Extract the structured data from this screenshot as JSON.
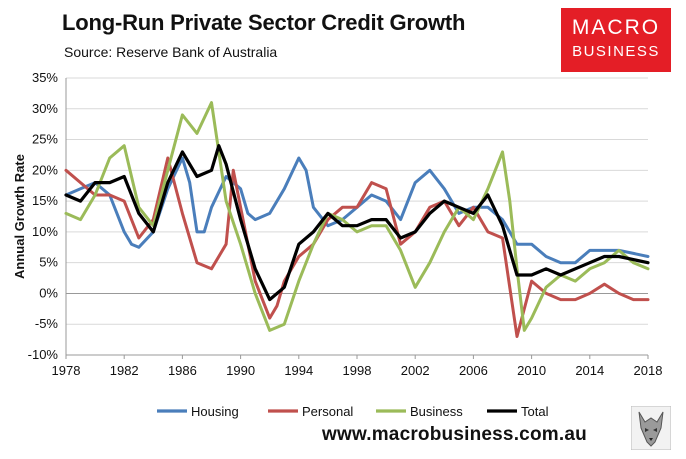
{
  "header": {
    "title": "Long-Run Private Sector Credit Growth",
    "subtitle": "Source: Reserve Bank of Australia"
  },
  "logo": {
    "line1": "MACRO",
    "line2": "BUSINESS",
    "color": "#e41e26"
  },
  "footer": {
    "url": "www.macrobusiness.com.au"
  },
  "chart_data": {
    "type": "line",
    "ylabel": "Annual Growth Rate",
    "ylim": [
      -10,
      35
    ],
    "xlim": [
      1978,
      2018
    ],
    "yticks": [
      "-10%",
      "-5%",
      "0%",
      "5%",
      "10%",
      "15%",
      "20%",
      "25%",
      "30%",
      "35%"
    ],
    "xticks": [
      "1978",
      "1982",
      "1986",
      "1990",
      "1994",
      "1998",
      "2002",
      "2006",
      "2010",
      "2014",
      "2018"
    ],
    "grid": "horizontal",
    "legend_position": "bottom",
    "series": [
      {
        "name": "Housing",
        "color": "#4a7ebb",
        "points": [
          [
            1978,
            16
          ],
          [
            1979,
            17
          ],
          [
            1980,
            18
          ],
          [
            1981,
            16
          ],
          [
            1982,
            10
          ],
          [
            1982.5,
            8
          ],
          [
            1983,
            7.5
          ],
          [
            1984,
            10
          ],
          [
            1985,
            17
          ],
          [
            1986,
            22
          ],
          [
            1986.5,
            18
          ],
          [
            1987,
            10
          ],
          [
            1987.5,
            10
          ],
          [
            1988,
            14
          ],
          [
            1989,
            19
          ],
          [
            1990,
            17
          ],
          [
            1990.5,
            13
          ],
          [
            1991,
            12
          ],
          [
            1992,
            13
          ],
          [
            1993,
            17
          ],
          [
            1994,
            22
          ],
          [
            1994.5,
            20
          ],
          [
            1995,
            14
          ],
          [
            1996,
            11
          ],
          [
            1997,
            12
          ],
          [
            1998,
            14
          ],
          [
            1999,
            16
          ],
          [
            2000,
            15
          ],
          [
            2001,
            12
          ],
          [
            2002,
            18
          ],
          [
            2003,
            20
          ],
          [
            2004,
            17
          ],
          [
            2005,
            13
          ],
          [
            2006,
            14
          ],
          [
            2007,
            14
          ],
          [
            2008,
            12
          ],
          [
            2009,
            8
          ],
          [
            2010,
            8
          ],
          [
            2011,
            6
          ],
          [
            2012,
            5
          ],
          [
            2013,
            5
          ],
          [
            2014,
            7
          ],
          [
            2015,
            7
          ],
          [
            2016,
            7
          ],
          [
            2017,
            6.5
          ],
          [
            2018,
            6
          ]
        ]
      },
      {
        "name": "Personal",
        "color": "#c0504d",
        "points": [
          [
            1978,
            20
          ],
          [
            1979,
            18
          ],
          [
            1980,
            16
          ],
          [
            1981,
            16
          ],
          [
            1982,
            15
          ],
          [
            1983,
            9
          ],
          [
            1984,
            12
          ],
          [
            1985,
            22
          ],
          [
            1986,
            13
          ],
          [
            1987,
            5
          ],
          [
            1988,
            4
          ],
          [
            1989,
            8
          ],
          [
            1989.5,
            20
          ],
          [
            1990,
            14
          ],
          [
            1991,
            2
          ],
          [
            1992,
            -4
          ],
          [
            1992.5,
            -2
          ],
          [
            1993,
            2
          ],
          [
            1994,
            6
          ],
          [
            1995,
            8
          ],
          [
            1996,
            12
          ],
          [
            1997,
            14
          ],
          [
            1998,
            14
          ],
          [
            1999,
            18
          ],
          [
            2000,
            17
          ],
          [
            2001,
            8
          ],
          [
            2002,
            10
          ],
          [
            2003,
            14
          ],
          [
            2004,
            15
          ],
          [
            2005,
            11
          ],
          [
            2006,
            14
          ],
          [
            2007,
            10
          ],
          [
            2008,
            9
          ],
          [
            2009,
            -7
          ],
          [
            2010,
            2
          ],
          [
            2011,
            0
          ],
          [
            2012,
            -1
          ],
          [
            2013,
            -1
          ],
          [
            2014,
            0
          ],
          [
            2015,
            1.5
          ],
          [
            2016,
            0
          ],
          [
            2017,
            -1
          ],
          [
            2018,
            -1
          ]
        ]
      },
      {
        "name": "Business",
        "color": "#9bbb59",
        "points": [
          [
            1978,
            13
          ],
          [
            1979,
            12
          ],
          [
            1980,
            16
          ],
          [
            1981,
            22
          ],
          [
            1982,
            24
          ],
          [
            1983,
            14
          ],
          [
            1984,
            11
          ],
          [
            1985,
            20
          ],
          [
            1986,
            29
          ],
          [
            1987,
            26
          ],
          [
            1988,
            31
          ],
          [
            1989,
            15
          ],
          [
            1990,
            8
          ],
          [
            1991,
            0
          ],
          [
            1992,
            -6
          ],
          [
            1993,
            -5
          ],
          [
            1994,
            2
          ],
          [
            1995,
            8
          ],
          [
            1996,
            13
          ],
          [
            1997,
            12
          ],
          [
            1998,
            10
          ],
          [
            1999,
            11
          ],
          [
            2000,
            11
          ],
          [
            2001,
            7
          ],
          [
            2002,
            1
          ],
          [
            2003,
            5
          ],
          [
            2004,
            10
          ],
          [
            2005,
            14
          ],
          [
            2006,
            12
          ],
          [
            2007,
            17
          ],
          [
            2008,
            23
          ],
          [
            2008.5,
            15
          ],
          [
            2009,
            4
          ],
          [
            2009.5,
            -6
          ],
          [
            2010,
            -4
          ],
          [
            2011,
            1
          ],
          [
            2012,
            3
          ],
          [
            2013,
            2
          ],
          [
            2014,
            4
          ],
          [
            2015,
            5
          ],
          [
            2016,
            7
          ],
          [
            2017,
            5
          ],
          [
            2018,
            4
          ]
        ]
      },
      {
        "name": "Total",
        "color": "#000000",
        "points": [
          [
            1978,
            16
          ],
          [
            1979,
            15
          ],
          [
            1980,
            18
          ],
          [
            1981,
            18
          ],
          [
            1982,
            19
          ],
          [
            1983,
            13
          ],
          [
            1984,
            10
          ],
          [
            1985,
            18
          ],
          [
            1986,
            23
          ],
          [
            1987,
            19
          ],
          [
            1988,
            20
          ],
          [
            1988.5,
            24
          ],
          [
            1989,
            21
          ],
          [
            1990,
            12
          ],
          [
            1991,
            4
          ],
          [
            1992,
            -1
          ],
          [
            1993,
            1
          ],
          [
            1994,
            8
          ],
          [
            1995,
            10
          ],
          [
            1996,
            13
          ],
          [
            1997,
            11
          ],
          [
            1998,
            11
          ],
          [
            1999,
            12
          ],
          [
            2000,
            12
          ],
          [
            2001,
            9
          ],
          [
            2002,
            10
          ],
          [
            2003,
            13
          ],
          [
            2004,
            15
          ],
          [
            2005,
            14
          ],
          [
            2006,
            13
          ],
          [
            2007,
            16
          ],
          [
            2008,
            11
          ],
          [
            2009,
            3
          ],
          [
            2010,
            3
          ],
          [
            2011,
            4
          ],
          [
            2012,
            3
          ],
          [
            2013,
            4
          ],
          [
            2014,
            5
          ],
          [
            2015,
            6
          ],
          [
            2016,
            6
          ],
          [
            2017,
            5.5
          ],
          [
            2018,
            5
          ]
        ]
      }
    ]
  }
}
